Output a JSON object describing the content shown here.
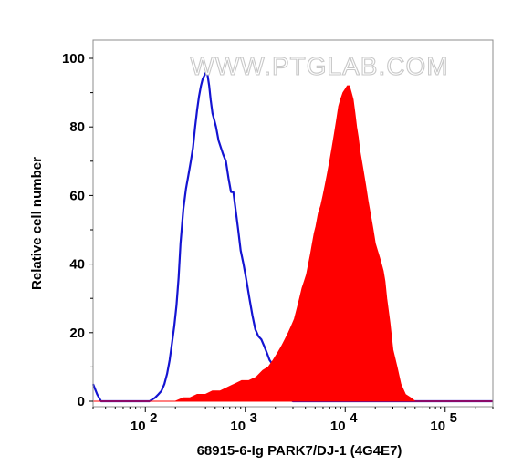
{
  "watermark": "WWW.PTGLAB.COM",
  "chart_data": {
    "type": "area",
    "xscale": "log",
    "xlim": [
      30,
      300000
    ],
    "ylim": [
      0,
      100
    ],
    "xlabel": "68915-6-Ig PARK7/DJ-1 (4G4E7)",
    "ylabel": "Relative cell number",
    "y_ticks": [
      0,
      20,
      40,
      60,
      80,
      100
    ],
    "x_ticks": [
      {
        "value": 100,
        "base": "10",
        "exp": "2"
      },
      {
        "value": 1000,
        "base": "10",
        "exp": "3"
      },
      {
        "value": 10000,
        "base": "10",
        "exp": "4"
      },
      {
        "value": 100000,
        "base": "10",
        "exp": "5"
      }
    ],
    "series": [
      {
        "style": "outline",
        "color": "#1414d2",
        "x": [
          30,
          33,
          36,
          40,
          50,
          70,
          90,
          110,
          125,
          135,
          145,
          155,
          165,
          175,
          185,
          195,
          205,
          215,
          225,
          240,
          255,
          270,
          285,
          300,
          315,
          330,
          345,
          360,
          375,
          390,
          405,
          420,
          435,
          450,
          470,
          490,
          510,
          540,
          570,
          600,
          640,
          680,
          720,
          760,
          800,
          850,
          900,
          960,
          1030,
          1100,
          1180,
          1260,
          1350,
          1450,
          1550,
          1650,
          1750,
          1850,
          1950,
          2050,
          2150,
          2300,
          2500,
          3000,
          4000,
          6000,
          10000,
          30000,
          100000,
          300000
        ],
        "y": [
          5,
          2,
          0,
          0,
          0,
          0,
          0,
          0,
          1,
          2,
          3,
          5,
          8,
          12,
          17,
          22,
          28,
          36,
          46,
          56,
          62,
          66,
          70,
          74,
          80,
          85,
          89,
          92,
          94,
          95,
          96,
          95,
          92,
          88,
          84,
          82,
          80,
          76,
          74,
          72,
          70,
          65,
          61,
          61,
          56,
          50,
          44,
          40,
          35,
          30,
          25,
          21,
          19,
          18,
          16,
          14,
          12,
          11,
          9,
          7,
          5,
          3,
          1,
          0,
          0,
          0,
          0,
          0,
          0,
          0
        ]
      },
      {
        "style": "filled",
        "color": "#ff0000",
        "x": [
          30,
          100,
          200,
          240,
          280,
          330,
          400,
          470,
          560,
          660,
          780,
          920,
          1080,
          1280,
          1500,
          1700,
          1900,
          2100,
          2300,
          2500,
          2700,
          2900,
          3100,
          3300,
          3500,
          3700,
          3900,
          4100,
          4300,
          4500,
          4700,
          4900,
          5100,
          5400,
          5700,
          6000,
          6300,
          6600,
          7000,
          7400,
          7800,
          8200,
          8600,
          9000,
          9500,
          10000,
          10500,
          11000,
          11500,
          12000,
          12500,
          13000,
          13500,
          14000,
          15000,
          16000,
          17000,
          18000,
          19000,
          20000,
          21000,
          22000,
          23000,
          24000,
          25000,
          26000,
          28000,
          30000,
          33000,
          36000,
          40000,
          45000,
          50000,
          60000,
          80000,
          120000,
          300000
        ],
        "y": [
          0,
          0,
          0,
          1,
          1,
          2,
          2,
          3,
          3,
          4,
          5,
          6,
          6,
          7,
          9,
          10,
          12,
          14,
          16,
          18,
          20,
          22,
          24,
          27,
          30,
          33,
          35,
          37,
          40,
          43,
          46,
          49,
          51,
          55,
          57,
          60,
          63,
          66,
          70,
          74,
          78,
          82,
          86,
          88,
          90,
          91,
          92,
          92,
          90,
          88,
          84,
          80,
          77,
          73,
          68,
          63,
          58,
          54,
          50,
          46,
          44,
          42,
          40,
          38,
          35,
          30,
          23,
          15,
          10,
          5,
          2,
          1,
          0,
          0,
          0,
          0,
          0
        ]
      }
    ]
  }
}
